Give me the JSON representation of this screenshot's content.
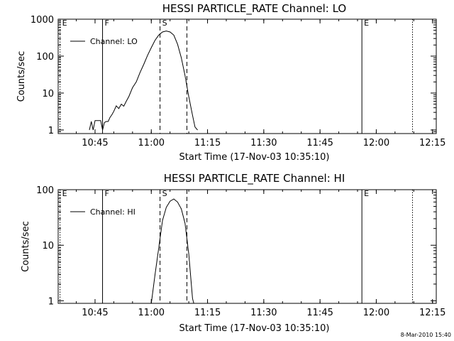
{
  "chart_data": [
    {
      "type": "line",
      "title": "HESSI PARTICLE_RATE Channel: LO",
      "xlabel": "Start Time (17-Nov-03 10:35:10)",
      "ylabel": "Counts/sec",
      "yscale": "log",
      "xlim": [
        "10:35:10",
        "12:16:00"
      ],
      "ylim": [
        0.8,
        1000
      ],
      "x_ticks": [
        "10:45",
        "11:00",
        "11:15",
        "11:30",
        "11:45",
        "12:00",
        "12:15"
      ],
      "y_ticks": [
        "1",
        "10",
        "100",
        "1000"
      ],
      "legend": {
        "placement": "top-left",
        "entries": [
          "Channel: LO"
        ]
      },
      "grid": false,
      "series": [
        {
          "name": "Channel: LO",
          "x": [
            "10:40:00",
            "10:42:00",
            "10:43:00",
            "10:43:30",
            "10:44:00",
            "10:44:30",
            "10:45:00",
            "10:45:30",
            "10:46:00",
            "10:46:30",
            "10:47:00",
            "10:47:30",
            "10:48:00",
            "10:48:30",
            "10:49:00",
            "10:49:30",
            "10:50:00",
            "10:50:40",
            "10:51:20",
            "10:52:00",
            "10:52:40",
            "10:53:20",
            "10:54:00",
            "10:55:00",
            "10:56:00",
            "10:57:00",
            "10:58:00",
            "10:59:00",
            "11:00:00",
            "11:01:00",
            "11:02:00",
            "11:03:00",
            "11:04:00",
            "11:05:00",
            "11:06:00",
            "11:07:00",
            "11:08:00",
            "11:09:00",
            "11:10:00",
            "11:11:00",
            "11:11:40",
            "11:12:20",
            "11:13:00"
          ],
          "y": [
            null,
            null,
            null,
            1,
            1.7,
            1,
            1.8,
            1.8,
            1.8,
            1.8,
            1,
            1.6,
            1.7,
            1.7,
            2.2,
            2.6,
            3.2,
            4.5,
            3.8,
            5,
            4.4,
            6,
            8,
            14,
            20,
            36,
            60,
            105,
            170,
            270,
            370,
            450,
            480,
            450,
            370,
            210,
            90,
            30,
            8,
            2.5,
            1.2,
            1,
            null
          ]
        }
      ],
      "annotations": [
        {
          "type": "vline",
          "x": "10:35:40",
          "style": "dotted",
          "label": "E"
        },
        {
          "type": "vline",
          "x": "10:47:00",
          "style": "solid",
          "label": "F"
        },
        {
          "type": "vline",
          "x": "11:02:20",
          "style": "dashed",
          "label": "S"
        },
        {
          "type": "vline",
          "x": "11:09:30",
          "style": "dashed",
          "label": ""
        },
        {
          "type": "vline",
          "x": "11:56:10",
          "style": "solid",
          "label": "E"
        },
        {
          "type": "vline",
          "x": "12:09:40",
          "style": "dotted",
          "label": ""
        }
      ]
    },
    {
      "type": "line",
      "title": "HESSI PARTICLE_RATE Channel: HI",
      "xlabel": "Start Time (17-Nov-03 10:35:10)",
      "ylabel": "Counts/sec",
      "yscale": "log",
      "xlim": [
        "10:35:10",
        "12:16:00"
      ],
      "ylim": [
        0.9,
        100
      ],
      "x_ticks": [
        "10:45",
        "11:00",
        "11:15",
        "11:30",
        "11:45",
        "12:00",
        "12:15"
      ],
      "y_ticks": [
        "1",
        "10",
        "100"
      ],
      "legend": {
        "placement": "top-left",
        "entries": [
          "Channel: HI"
        ]
      },
      "grid": false,
      "series": [
        {
          "name": "Channel: HI",
          "x": [
            "11:00:00",
            "11:01:00",
            "11:02:00",
            "11:03:00",
            "11:04:00",
            "11:05:00",
            "11:06:00",
            "11:07:00",
            "11:08:00",
            "11:09:00",
            "11:10:00",
            "11:11:00",
            "11:11:20"
          ],
          "y": [
            0.85,
            3,
            9,
            28,
            48,
            62,
            68,
            60,
            45,
            25,
            7,
            1.1,
            0.9
          ]
        }
      ],
      "annotations": [
        {
          "type": "vline",
          "x": "10:35:40",
          "style": "dotted",
          "label": "E"
        },
        {
          "type": "vline",
          "x": "10:47:00",
          "style": "solid",
          "label": "F"
        },
        {
          "type": "vline",
          "x": "11:02:20",
          "style": "dashed",
          "label": "S"
        },
        {
          "type": "vline",
          "x": "11:09:30",
          "style": "dashed",
          "label": ""
        },
        {
          "type": "vline",
          "x": "11:56:10",
          "style": "solid",
          "label": "E"
        },
        {
          "type": "vline",
          "x": "12:09:40",
          "style": "dotted",
          "label": ""
        }
      ]
    }
  ],
  "footer": {
    "timestamp": "8-Mar-2010 15:40"
  }
}
